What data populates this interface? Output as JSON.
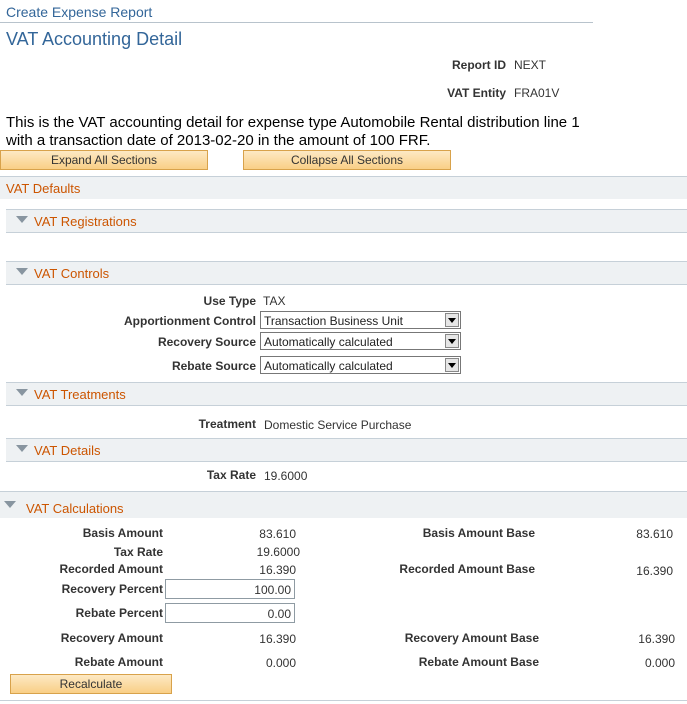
{
  "breadcrumb": "Create Expense Report",
  "page_title": "VAT Accounting Detail",
  "header": {
    "report_id_label": "Report ID",
    "report_id_value": "NEXT",
    "vat_entity_label": "VAT Entity",
    "vat_entity_value": "FRA01V"
  },
  "intro_text": "This is the VAT accounting detail for expense type Automobile Rental distribution line 1 with a transaction date of 2013-02-20 in the amount of 100 FRF.",
  "buttons": {
    "expand_all": "Expand All Sections",
    "collapse_all": "Collapse All Sections",
    "recalculate": "Recalculate"
  },
  "sections": {
    "vat_defaults": "VAT Defaults",
    "vat_registrations": "VAT Registrations",
    "vat_controls": "VAT Controls",
    "vat_treatments": "VAT Treatments",
    "vat_details": "VAT Details",
    "vat_calculations": "VAT Calculations"
  },
  "controls": {
    "use_type_label": "Use Type",
    "use_type_value": "TAX",
    "apportionment_label": "Apportionment Control",
    "apportionment_value": "Transaction Business Unit",
    "recovery_source_label": "Recovery Source",
    "recovery_source_value": "Automatically calculated",
    "rebate_source_label": "Rebate Source",
    "rebate_source_value": "Automatically calculated"
  },
  "treatments": {
    "treatment_label": "Treatment",
    "treatment_value": "Domestic Service Purchase"
  },
  "details": {
    "tax_rate_label": "Tax Rate",
    "tax_rate_value": "19.6000"
  },
  "calculations": {
    "basis_amount_label": "Basis Amount",
    "basis_amount_value": "83.610",
    "basis_amount_base_label": "Basis Amount Base",
    "basis_amount_base_value": "83.610",
    "tax_rate_label": "Tax Rate",
    "tax_rate_value": "19.6000",
    "recorded_amount_label": "Recorded Amount",
    "recorded_amount_value": "16.390",
    "recorded_amount_base_label": "Recorded Amount Base",
    "recorded_amount_base_value": "16.390",
    "recovery_percent_label": "Recovery Percent",
    "recovery_percent_value": "100.00",
    "rebate_percent_label": "Rebate Percent",
    "rebate_percent_value": "0.00",
    "recovery_amount_label": "Recovery Amount",
    "recovery_amount_value": "16.390",
    "recovery_amount_base_label": "Recovery Amount Base",
    "recovery_amount_base_value": "16.390",
    "rebate_amount_label": "Rebate Amount",
    "rebate_amount_value": "0.000",
    "rebate_amount_base_label": "Rebate Amount Base",
    "rebate_amount_base_value": "0.000"
  }
}
